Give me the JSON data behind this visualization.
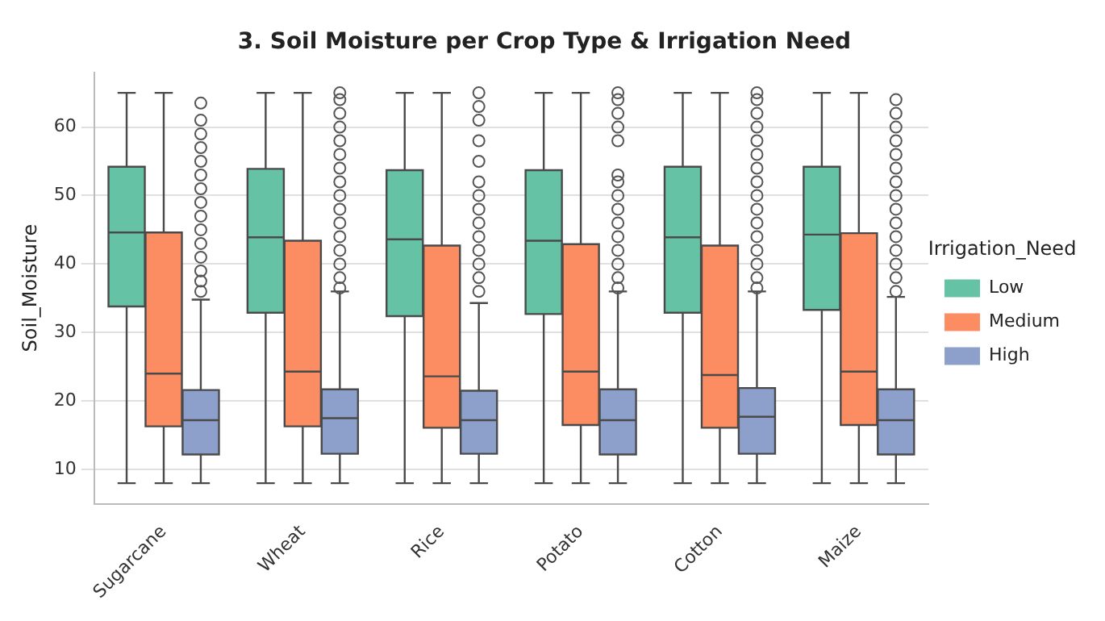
{
  "chart_data": {
    "type": "box",
    "title": "3. Soil Moisture per Crop Type & Irrigation Need",
    "ylabel": "Soil_Moisture",
    "legend_title": "Irrigation_Need",
    "legend": "right",
    "grid": "y",
    "categories": [
      "Sugarcane",
      "Wheat",
      "Rice",
      "Potato",
      "Cotton",
      "Maize"
    ],
    "ylim": [
      5,
      68
    ],
    "yticks": [
      10,
      20,
      30,
      40,
      50,
      60
    ],
    "marker": "circle",
    "series": [
      {
        "name": "Low",
        "color": "#66c2a5",
        "boxes": [
          {
            "low": 8,
            "q1": 33.8,
            "median": 44.6,
            "q3": 54.2,
            "high": 65
          },
          {
            "low": 8,
            "q1": 32.9,
            "median": 43.9,
            "q3": 53.9,
            "high": 65
          },
          {
            "low": 8,
            "q1": 32.4,
            "median": 43.6,
            "q3": 53.7,
            "high": 65
          },
          {
            "low": 8,
            "q1": 32.7,
            "median": 43.4,
            "q3": 53.7,
            "high": 65
          },
          {
            "low": 8,
            "q1": 32.9,
            "median": 43.9,
            "q3": 54.2,
            "high": 65
          },
          {
            "low": 8,
            "q1": 33.3,
            "median": 44.3,
            "q3": 54.2,
            "high": 65
          }
        ]
      },
      {
        "name": "Medium",
        "color": "#fc8d62",
        "boxes": [
          {
            "low": 8,
            "q1": 16.3,
            "median": 24,
            "q3": 44.6,
            "high": 65
          },
          {
            "low": 8,
            "q1": 16.3,
            "median": 24.3,
            "q3": 43.4,
            "high": 65
          },
          {
            "low": 8,
            "q1": 16.1,
            "median": 23.6,
            "q3": 42.7,
            "high": 65
          },
          {
            "low": 8,
            "q1": 16.5,
            "median": 24.3,
            "q3": 42.9,
            "high": 65
          },
          {
            "low": 8,
            "q1": 16.1,
            "median": 23.8,
            "q3": 42.7,
            "high": 65
          },
          {
            "low": 8,
            "q1": 16.5,
            "median": 24.3,
            "q3": 44.5,
            "high": 65
          }
        ]
      },
      {
        "name": "High",
        "color": "#8da0cb",
        "boxes": [
          {
            "low": 8,
            "q1": 12.2,
            "median": 17.2,
            "q3": 21.6,
            "high": 34.8,
            "outliers": [
              36,
              37.5,
              39,
              41,
              43,
              45,
              47,
              49,
              51,
              53,
              55,
              57,
              59,
              61,
              63.5
            ]
          },
          {
            "low": 8,
            "q1": 12.3,
            "median": 17.5,
            "q3": 21.7,
            "high": 36,
            "outliers": [
              36.5,
              38,
              40,
              42,
              44,
              46,
              48,
              50,
              52,
              54,
              56,
              58,
              60,
              62,
              64,
              65
            ]
          },
          {
            "low": 8,
            "q1": 12.3,
            "median": 17.2,
            "q3": 21.5,
            "high": 34.3,
            "outliers": [
              36,
              38,
              40,
              42,
              44,
              46,
              48,
              50,
              52,
              55,
              58,
              61,
              63,
              65
            ]
          },
          {
            "low": 8,
            "q1": 12.2,
            "median": 17.2,
            "q3": 21.7,
            "high": 36,
            "outliers": [
              36.5,
              38,
              40,
              42,
              44,
              46,
              48,
              50,
              52,
              53,
              58,
              60,
              62,
              64,
              65
            ]
          },
          {
            "low": 8,
            "q1": 12.3,
            "median": 17.7,
            "q3": 21.9,
            "high": 36,
            "outliers": [
              36.5,
              38,
              40,
              42,
              44,
              46,
              48,
              50,
              52,
              54,
              56,
              58,
              60,
              62,
              64,
              65
            ]
          },
          {
            "low": 8,
            "q1": 12.2,
            "median": 17.2,
            "q3": 21.7,
            "high": 35.2,
            "outliers": [
              36,
              38,
              40,
              42,
              44,
              46,
              48,
              50,
              52,
              54,
              56,
              58,
              60,
              62,
              64
            ]
          }
        ]
      }
    ]
  }
}
